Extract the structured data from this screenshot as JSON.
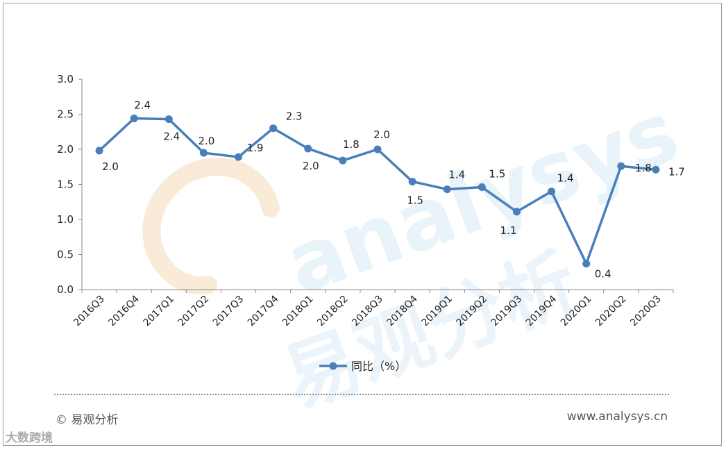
{
  "chart_data": {
    "type": "line",
    "categories": [
      "2016Q3",
      "2016Q4",
      "2017Q1",
      "2017Q2",
      "2017Q3",
      "2017Q4",
      "2018Q1",
      "2018Q2",
      "2018Q3",
      "2018Q4",
      "2019Q1",
      "2019Q2",
      "2019Q3",
      "2019Q4",
      "2020Q1",
      "2020Q2",
      "2020Q3"
    ],
    "series": [
      {
        "name": "同比（%）",
        "values": [
          1.98,
          2.44,
          2.43,
          1.95,
          1.89,
          2.3,
          2.01,
          1.84,
          2.0,
          1.54,
          1.43,
          1.46,
          1.11,
          1.4,
          0.37,
          1.76,
          1.71
        ],
        "labels": [
          "2.0",
          "2.4",
          "2.4",
          "2.0",
          "1.9",
          "2.3",
          "2.0",
          "1.8",
          "2.0",
          "1.5",
          "1.4",
          "1.5",
          "1.1",
          "1.4",
          "0.4",
          "1.8",
          "1.7"
        ],
        "color": "#4a7ebb"
      }
    ],
    "ylim": [
      0,
      3.0
    ],
    "yticks": [
      "0.0",
      "0.5",
      "1.0",
      "1.5",
      "2.0",
      "2.5",
      "3.0"
    ],
    "grid": false,
    "legend": "bottom"
  },
  "watermark": {
    "latin": "analysys",
    "cjk": "易观分析"
  },
  "footer": {
    "source": "© 易观分析",
    "url": "www.analysys.cn",
    "corner_mark": "大数跨境"
  }
}
